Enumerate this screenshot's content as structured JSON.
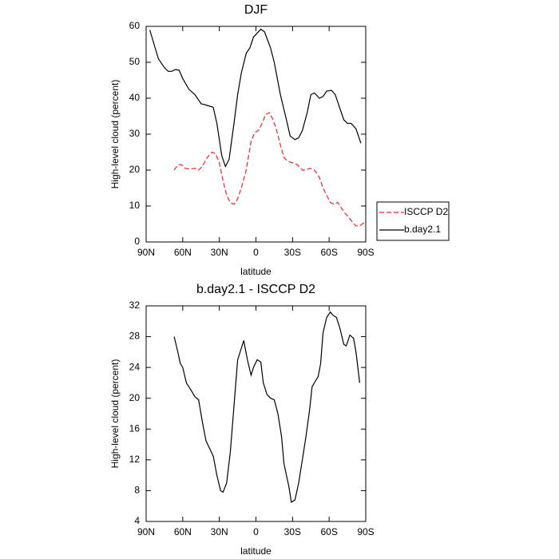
{
  "chart_data": [
    {
      "type": "line",
      "title": "DJF",
      "xlabel": "latitude",
      "ylabel": "High-level cloud (percent)",
      "xlim": [
        90,
        -90
      ],
      "xticks": [
        {
          "value": 90,
          "label": "90N"
        },
        {
          "value": 60,
          "label": "60N"
        },
        {
          "value": 30,
          "label": "30N"
        },
        0,
        {
          "value": -30,
          "label": "30S"
        },
        {
          "value": -60,
          "label": "60S"
        },
        {
          "value": -90,
          "label": "90S"
        }
      ],
      "ylim": [
        0,
        60
      ],
      "yticks": [
        0,
        10,
        20,
        30,
        40,
        50,
        60
      ],
      "legend": "right",
      "series": [
        {
          "name": "ISCCP D2",
          "color": "#e8262a",
          "style": "dashed",
          "x": [
            67,
            64,
            61,
            58,
            54,
            50,
            47,
            44,
            40,
            36,
            33,
            30,
            27,
            24,
            21,
            18,
            15,
            12,
            8,
            4,
            1,
            -2,
            -5,
            -8,
            -11,
            -14,
            -17,
            -20,
            -23,
            -26,
            -30,
            -34,
            -38,
            -41,
            -44,
            -48,
            -52,
            -55,
            -58,
            -61,
            -64,
            -67,
            -70,
            -73,
            -76,
            -79,
            -82,
            -85,
            -89
          ],
          "values": [
            20,
            21.5,
            21.5,
            20.5,
            20.3,
            20.5,
            20,
            21,
            23.5,
            25,
            24.5,
            22,
            17,
            13,
            11,
            10.5,
            12,
            15,
            20,
            28,
            30.5,
            31,
            33,
            35.5,
            36,
            34,
            31,
            27,
            23.5,
            22.5,
            22,
            21.5,
            20,
            20,
            20.5,
            20,
            18,
            15,
            13,
            11,
            10.5,
            11,
            9.5,
            8,
            7,
            5.5,
            4.5,
            4.5,
            5.5
          ]
        },
        {
          "name": "b.day2.1",
          "color": "#000000",
          "style": "solid",
          "x": [
            87,
            80,
            75,
            72,
            69,
            66,
            63,
            60,
            55,
            50,
            45,
            40,
            35,
            32,
            28,
            25,
            22,
            18,
            15,
            12,
            8,
            5,
            2,
            -4,
            -7,
            -12,
            -15,
            -20,
            -25,
            -28,
            -32,
            -35,
            -38,
            -42,
            -45,
            -48,
            -52,
            -55,
            -58,
            -62,
            -65,
            -69,
            -72,
            -75,
            -78,
            -82,
            -86
          ],
          "values": [
            59,
            51,
            48.5,
            47.5,
            47.5,
            48,
            47.8,
            45.5,
            42.5,
            41,
            38.5,
            38,
            37.5,
            33,
            24,
            21,
            23,
            33,
            41,
            47,
            52.5,
            54,
            57,
            59.2,
            58.5,
            54,
            50,
            41,
            34,
            29.5,
            28.5,
            29,
            31,
            36,
            41,
            41.5,
            40,
            40.5,
            42,
            42.2,
            41,
            37,
            34,
            33,
            33,
            31.5,
            27.5
          ]
        }
      ]
    },
    {
      "type": "line",
      "title": "b.day2.1 - ISCCP D2",
      "xlabel": "latitude",
      "ylabel": "High-level cloud (percent)",
      "xlim": [
        90,
        -90
      ],
      "xticks": [
        {
          "value": 90,
          "label": "90N"
        },
        {
          "value": 60,
          "label": "60N"
        },
        {
          "value": 30,
          "label": "30N"
        },
        0,
        {
          "value": -30,
          "label": "30S"
        },
        {
          "value": -60,
          "label": "60S"
        },
        {
          "value": -90,
          "label": "90S"
        }
      ],
      "ylim": [
        4,
        32
      ],
      "yticks": [
        4,
        8,
        12,
        16,
        20,
        24,
        28,
        32
      ],
      "series": [
        {
          "color": "#000000",
          "style": "solid",
          "x": [
            67,
            64,
            62,
            60,
            57,
            53,
            50,
            47,
            44,
            41,
            38,
            35,
            32,
            29,
            27,
            24,
            21,
            18,
            15,
            12,
            10,
            7,
            4,
            2,
            -1,
            -4,
            -6,
            -9,
            -12,
            -15,
            -18,
            -21,
            -23,
            -27,
            -29,
            -32,
            -35,
            -38,
            -41,
            -44,
            -46,
            -49,
            -51,
            -53,
            -55,
            -58,
            -61,
            -63,
            -66,
            -69,
            -72,
            -74,
            -77,
            -80,
            -82,
            -85
          ],
          "values": [
            28,
            26,
            24.5,
            24,
            22,
            21,
            20.2,
            19.8,
            17,
            14.5,
            13.5,
            12.5,
            10,
            8,
            7.8,
            9,
            13,
            19,
            25,
            26.5,
            27.5,
            25,
            23,
            24,
            25,
            24.7,
            22,
            20.5,
            20,
            19.8,
            18,
            15,
            11.5,
            8.5,
            6.5,
            6.8,
            9,
            12,
            15,
            18.5,
            21.5,
            22.3,
            22.8,
            24.5,
            28.5,
            30.5,
            31.2,
            30.8,
            30.5,
            29,
            27,
            26.8,
            28.2,
            27.8,
            26,
            22
          ]
        }
      ]
    }
  ]
}
